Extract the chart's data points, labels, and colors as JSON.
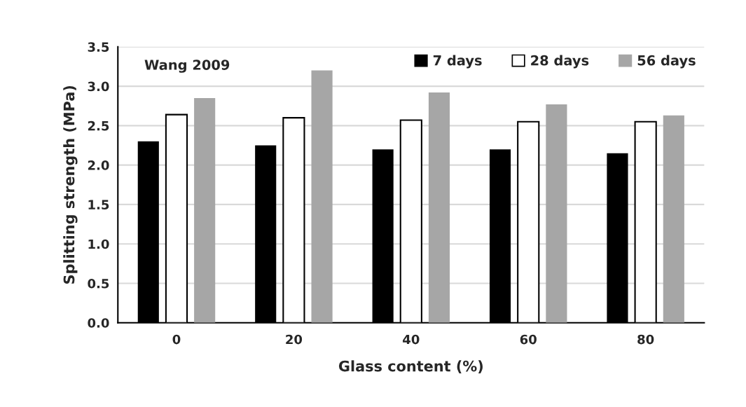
{
  "chart_data": {
    "type": "bar",
    "xlabel": "Glass content (%)",
    "ylabel": "Splitting strength (MPa)",
    "categories": [
      "0",
      "20",
      "40",
      "60",
      "80"
    ],
    "series": [
      {
        "name": "7 days",
        "color": "#000000",
        "values": [
          2.3,
          2.25,
          2.2,
          2.2,
          2.15
        ]
      },
      {
        "name": "28 days",
        "color": "#ffffff",
        "values": [
          2.64,
          2.6,
          2.57,
          2.55,
          2.55
        ]
      },
      {
        "name": "56 days",
        "color": "#a6a6a6",
        "values": [
          2.85,
          3.2,
          2.92,
          2.77,
          2.63
        ]
      }
    ],
    "ylim": [
      0,
      3.5
    ],
    "yticks": [
      {
        "value": 0,
        "label": "0.0"
      },
      {
        "value": 0.5,
        "label": "0.5"
      },
      {
        "value": 1,
        "label": "1.0"
      },
      {
        "value": 1.5,
        "label": "1.5"
      },
      {
        "value": 2,
        "label": "2.0"
      },
      {
        "value": 2.5,
        "label": "2.5"
      },
      {
        "value": 3,
        "label": "3.0"
      },
      {
        "value": 3.5,
        "label": "3.5"
      }
    ],
    "grid": "y",
    "legend": "top right",
    "annotations": [
      "Wang 2009"
    ]
  }
}
